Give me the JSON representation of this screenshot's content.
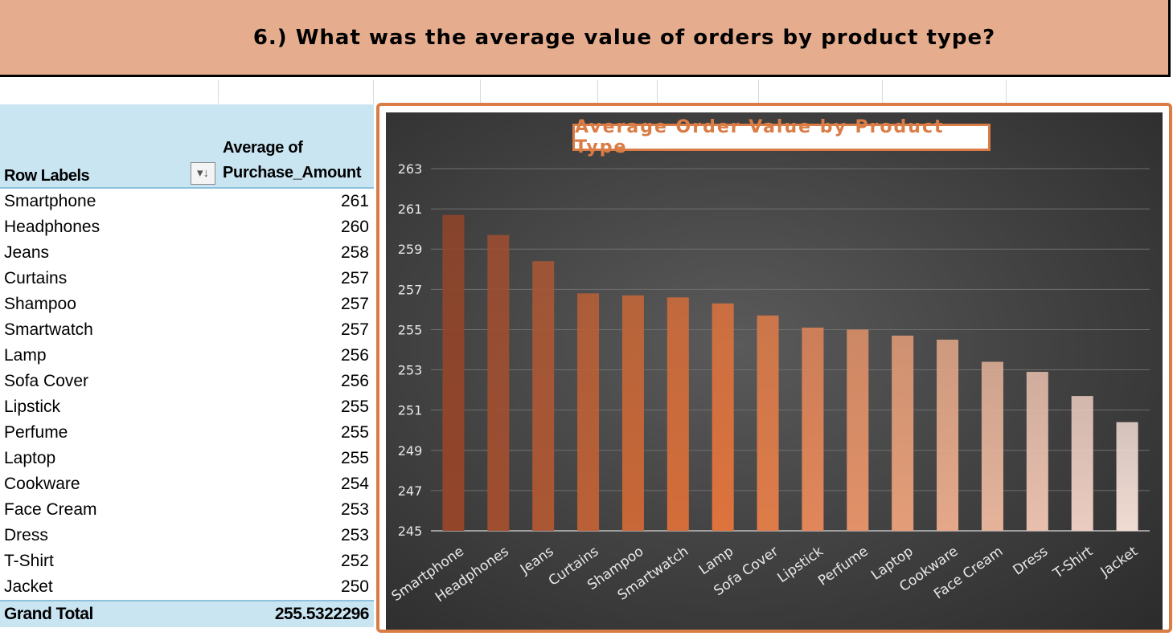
{
  "header": {
    "title": "6.) What was the average value of orders by product type?"
  },
  "pivot": {
    "row_labels_header": "Row Labels",
    "value_header_line1": "Average of",
    "value_header_line2": "Purchase_Amount",
    "rows": [
      {
        "label": "Smartphone",
        "value": "261"
      },
      {
        "label": "Headphones",
        "value": "260"
      },
      {
        "label": "Jeans",
        "value": "258"
      },
      {
        "label": "Curtains",
        "value": "257"
      },
      {
        "label": "Shampoo",
        "value": "257"
      },
      {
        "label": "Smartwatch",
        "value": "257"
      },
      {
        "label": "Lamp",
        "value": "256"
      },
      {
        "label": "Sofa Cover",
        "value": "256"
      },
      {
        "label": "Lipstick",
        "value": "255"
      },
      {
        "label": "Perfume",
        "value": "255"
      },
      {
        "label": "Laptop",
        "value": "255"
      },
      {
        "label": "Cookware",
        "value": "254"
      },
      {
        "label": "Face Cream",
        "value": "253"
      },
      {
        "label": "Dress",
        "value": "253"
      },
      {
        "label": "T-Shirt",
        "value": "252"
      },
      {
        "label": "Jacket",
        "value": "250"
      }
    ],
    "grand_total_label": "Grand Total",
    "grand_total_value": "255.5322296"
  },
  "chart_data": {
    "type": "bar",
    "title": "Average Order Value by Product Type",
    "categories": [
      "Smartphone",
      "Headphones",
      "Jeans",
      "Curtains",
      "Shampoo",
      "Smartwatch",
      "Lamp",
      "Sofa Cover",
      "Lipstick",
      "Perfume",
      "Laptop",
      "Cookware",
      "Face Cream",
      "Dress",
      "T-Shirt",
      "Jacket"
    ],
    "values": [
      260.7,
      259.7,
      258.4,
      256.8,
      256.7,
      256.6,
      256.3,
      255.7,
      255.1,
      255.0,
      254.7,
      254.5,
      253.4,
      252.9,
      251.7,
      250.4
    ],
    "ylim": [
      245,
      263
    ],
    "yticks": [
      245,
      247,
      249,
      251,
      253,
      255,
      257,
      259,
      261,
      263
    ],
    "grid": true,
    "bar_colors": [
      "#93452a",
      "#9f4e30",
      "#ac5734",
      "#bb6036",
      "#c86737",
      "#d46d3a",
      "#de733d",
      "#df7c49",
      "#e1865a",
      "#e29168",
      "#e49d78",
      "#e4a889",
      "#e5b39a",
      "#e8bfad",
      "#ebccc0",
      "#f0dbd2"
    ]
  }
}
